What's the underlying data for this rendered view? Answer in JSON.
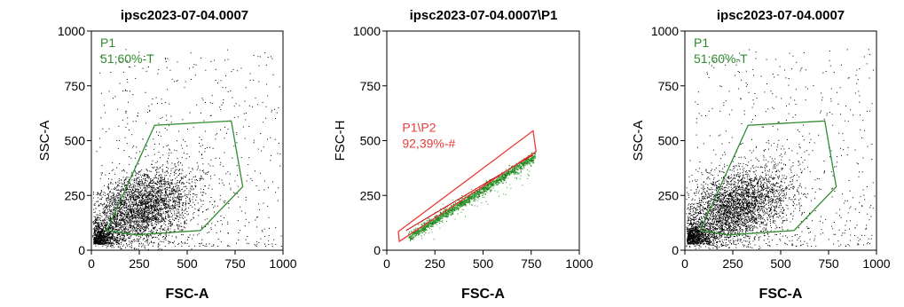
{
  "chart_data": [
    {
      "type": "scatter",
      "title": "ipsc2023-07-04.0007",
      "xlabel": "FSC-A",
      "ylabel": "SSC-A",
      "xlim": [
        0,
        1000
      ],
      "ylim": [
        0,
        1000
      ],
      "x_ticks": [
        "0",
        "250",
        "500",
        "750",
        "1000"
      ],
      "y_ticks": [
        "0",
        "250",
        "500",
        "750",
        "1000"
      ],
      "gate": {
        "name": "P1",
        "stat": "51;60%-T",
        "color": "#2e8b2e",
        "vertices": [
          [
            80,
            90
          ],
          [
            330,
            570
          ],
          [
            730,
            590
          ],
          [
            790,
            290
          ],
          [
            570,
            90
          ],
          [
            230,
            70
          ]
        ]
      }
    },
    {
      "type": "scatter",
      "title": "ipsc2023-07-04.0007\\P1",
      "xlabel": "FSC-A",
      "ylabel": "FSC-H",
      "xlim": [
        0,
        1000
      ],
      "ylim": [
        0,
        1000
      ],
      "x_ticks": [
        "0",
        "250",
        "500",
        "750",
        "1000"
      ],
      "y_ticks": [
        "0",
        "250",
        "500",
        "750",
        "1000"
      ],
      "gate": {
        "name": "P1\\P2",
        "stat": "92,39%-#",
        "color": "#e83a3a",
        "vertices": [
          [
            65,
            40
          ],
          [
            60,
            85
          ],
          [
            760,
            545
          ],
          [
            775,
            450
          ]
        ]
      }
    },
    {
      "type": "scatter",
      "title": "ipsc2023-07-04.0007",
      "xlabel": "FSC-A",
      "ylabel": "SSC-A",
      "xlim": [
        0,
        1000
      ],
      "ylim": [
        0,
        1000
      ],
      "x_ticks": [
        "0",
        "250",
        "500",
        "750",
        "1000"
      ],
      "y_ticks": [
        "0",
        "250",
        "500",
        "750",
        "1000"
      ],
      "gate": {
        "name": "P1",
        "stat": "51;60%-T",
        "color": "#2e8b2e",
        "vertices": [
          [
            80,
            90
          ],
          [
            330,
            570
          ],
          [
            730,
            590
          ],
          [
            790,
            290
          ],
          [
            570,
            90
          ],
          [
            230,
            70
          ]
        ]
      }
    }
  ]
}
